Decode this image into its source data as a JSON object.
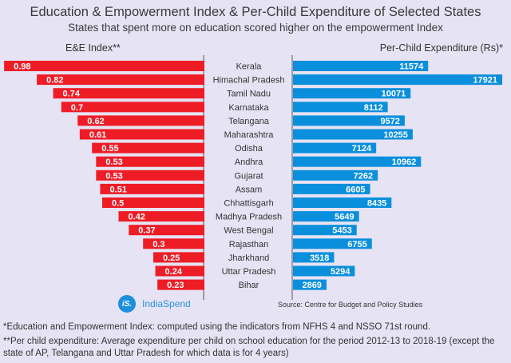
{
  "title": "Education & Empowerment Index & Per-Child Expenditure of Selected States",
  "subtitle": "States that spent more on education scored higher on the empowerment Index",
  "chart_data": [
    {
      "type": "bar",
      "orientation": "horizontal",
      "direction": "leftward",
      "title": "E&E Index**",
      "categories": [
        "Kerala",
        "Himachal Pradesh",
        "Tamil Nadu",
        "Karnataka",
        "Telangana",
        "Maharashtra",
        "Odisha",
        "Andhra",
        "Gujarat",
        "Assam",
        "Chhattisgarh",
        "Madhya Pradesh",
        "West Bengal",
        "Rajasthan",
        "Jharkhand",
        "Uttar Pradesh",
        "Bihar"
      ],
      "values": [
        0.98,
        0.82,
        0.74,
        0.7,
        0.62,
        0.61,
        0.55,
        0.53,
        0.53,
        0.51,
        0.5,
        0.42,
        0.37,
        0.3,
        0.25,
        0.24,
        0.23
      ],
      "xlim": [
        0,
        1
      ],
      "color": "#ee1c25",
      "data_labels": true,
      "grid": false
    },
    {
      "type": "bar",
      "orientation": "horizontal",
      "direction": "rightward",
      "title": "Per-Child Expenditure (Rs)*",
      "categories": [
        "Kerala",
        "Himachal Pradesh",
        "Tamil Nadu",
        "Karnataka",
        "Telangana",
        "Maharashtra",
        "Odisha",
        "Andhra",
        "Gujarat",
        "Assam",
        "Chhattisgarh",
        "Madhya Pradesh",
        "West Bengal",
        "Rajasthan",
        "Jharkhand",
        "Uttar Pradesh",
        "Bihar"
      ],
      "values": [
        11574,
        17921,
        10071,
        8112,
        9572,
        10255,
        7124,
        10962,
        7262,
        6605,
        8435,
        5649,
        5453,
        6755,
        3518,
        5294,
        2869
      ],
      "xlim": [
        0,
        18000
      ],
      "color": "#0a8fdc",
      "data_labels": true,
      "grid": false
    }
  ],
  "brand": "IndiaSpend",
  "brand_mark": "iS.",
  "source": "Source: Centre for Budget and Policy Studies",
  "notes": [
    "*Education and Empowerment Index: computed using the indicators from NFHS 4 and NSSO 71st round.",
    "**Per child expenditure: Average expenditure per child on school education for the period 2012-13 to 2018-19 (except the state of AP, Telangana and Uttar Pradesh for which data is for 4 years)"
  ],
  "colors": {
    "left": "#ee1c25",
    "right": "#0a8fdc",
    "background": "#e6e3f4"
  }
}
